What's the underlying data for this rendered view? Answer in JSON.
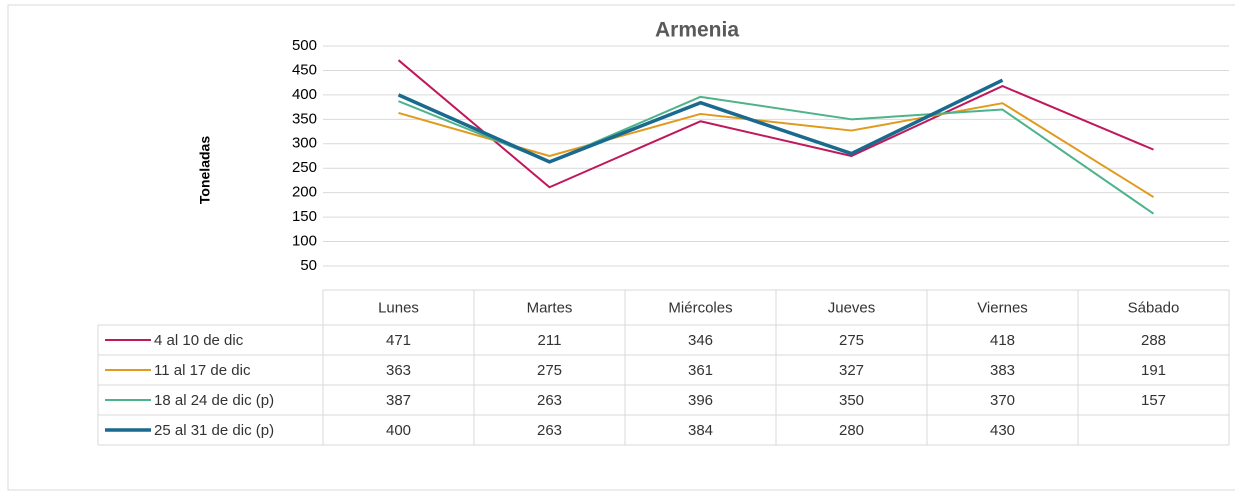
{
  "chart_data": {
    "type": "line",
    "title": "Armenia",
    "y_label": "Toneladas",
    "categories": [
      "Lunes",
      "Martes",
      "Miércoles",
      "Jueves",
      "Viernes",
      "Sábado"
    ],
    "series": [
      {
        "name": "4 al 10 de dic",
        "color": "#c0185a",
        "values": [
          471,
          211,
          346,
          275,
          418,
          288
        ]
      },
      {
        "name": "11 al 17 de dic",
        "color": "#e09a1e",
        "values": [
          363,
          275,
          361,
          327,
          383,
          191
        ]
      },
      {
        "name": "18 al 24 de dic (p)",
        "color": "#4cb38a",
        "values": [
          387,
          263,
          396,
          350,
          370,
          157
        ]
      },
      {
        "name": "25 al 31 de dic (p)",
        "color": "#1a6a8f",
        "values": [
          400,
          263,
          384,
          280,
          430,
          null
        ]
      }
    ],
    "ylim": [
      0,
      500
    ],
    "yticks": [
      50,
      100,
      150,
      200,
      250,
      300,
      350,
      400,
      450,
      500
    ],
    "grid": true
  }
}
